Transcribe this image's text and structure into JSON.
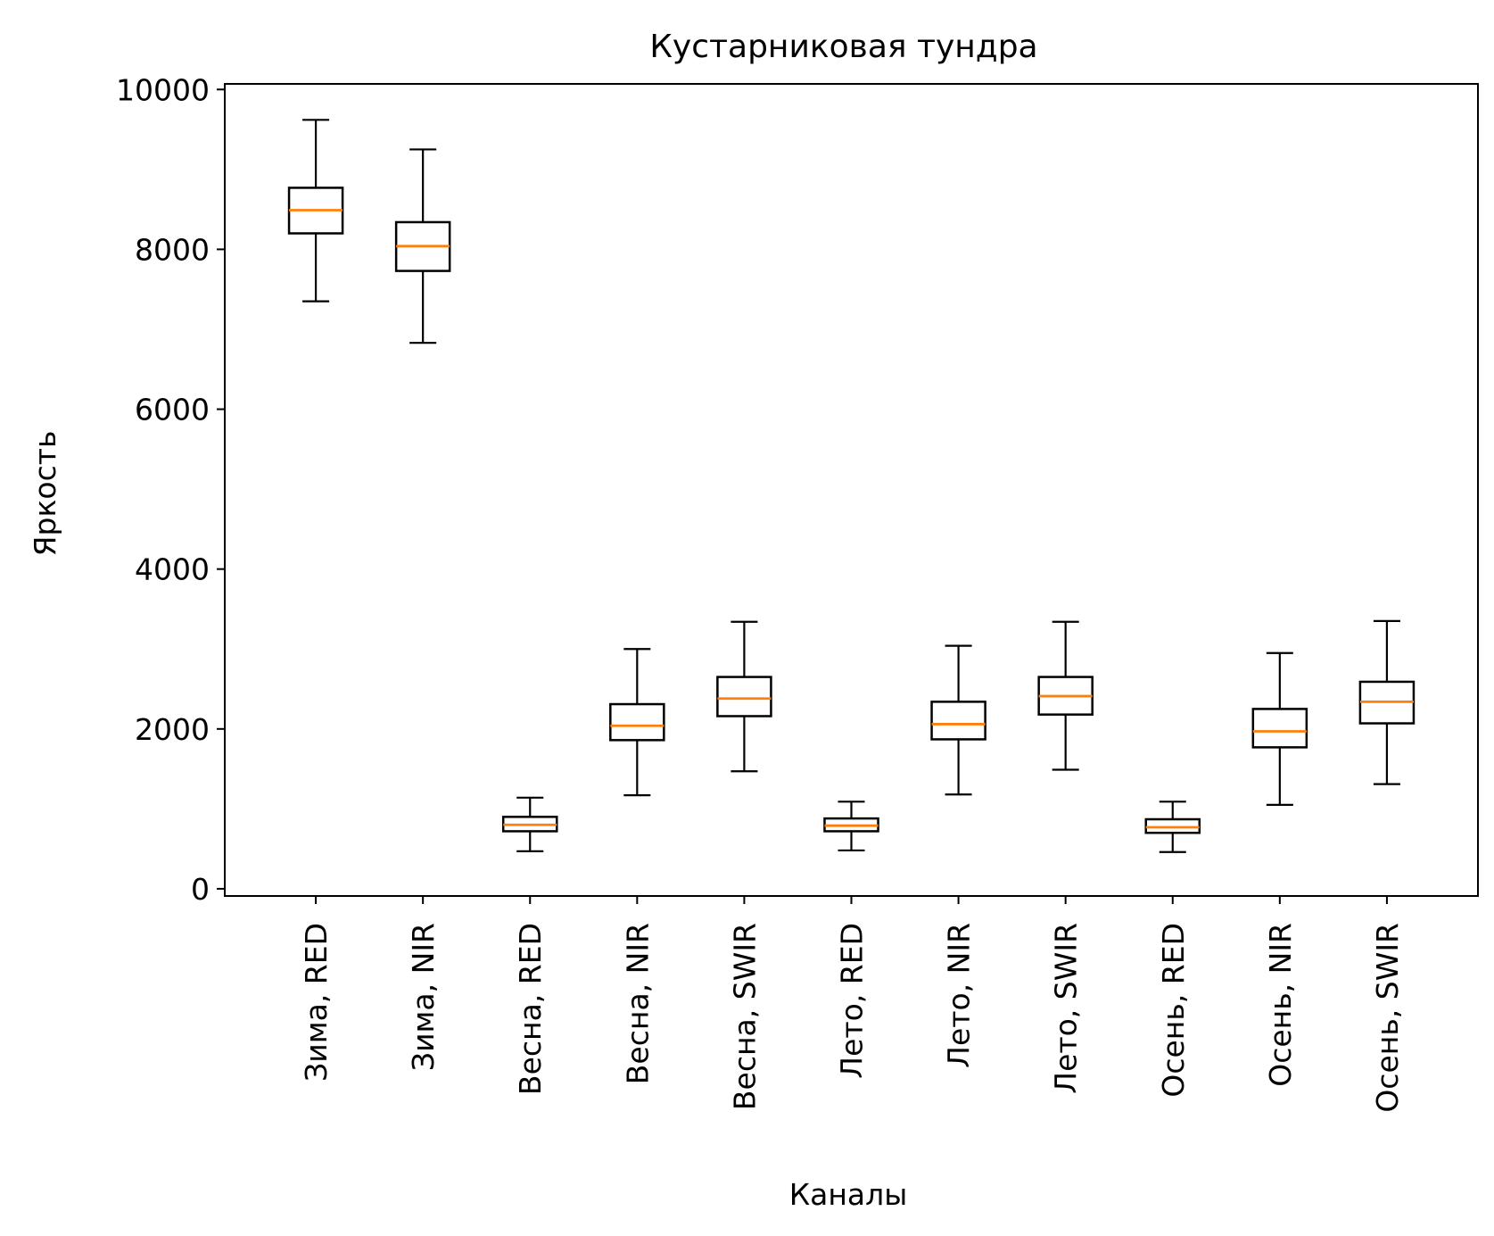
{
  "chart_data": {
    "type": "boxplot",
    "title": "Кустарниковая тундра",
    "xlabel": "Каналы",
    "ylabel": "Яркость",
    "ylim": [
      -90,
      10070
    ],
    "yticks": [
      0,
      2000,
      4000,
      6000,
      8000,
      10000
    ],
    "grid": false,
    "categories": [
      "Зима, RED",
      "Зима, NIR",
      "Весна, RED",
      "Весна, NIR",
      "Весна, SWIR",
      "Лето, RED",
      "Лето, NIR",
      "Лето, SWIR",
      "Осень, RED",
      "Осень, NIR",
      "Осень, SWIR"
    ],
    "boxes": [
      {
        "whislo": 7350,
        "q1": 8200,
        "med": 8490,
        "q3": 8770,
        "whishi": 9620
      },
      {
        "whislo": 6830,
        "q1": 7730,
        "med": 8040,
        "q3": 8340,
        "whishi": 9250
      },
      {
        "whislo": 470,
        "q1": 720,
        "med": 800,
        "q3": 900,
        "whishi": 1140
      },
      {
        "whislo": 1170,
        "q1": 1860,
        "med": 2040,
        "q3": 2310,
        "whishi": 3000
      },
      {
        "whislo": 1470,
        "q1": 2160,
        "med": 2380,
        "q3": 2650,
        "whishi": 3340
      },
      {
        "whislo": 480,
        "q1": 720,
        "med": 790,
        "q3": 880,
        "whishi": 1090
      },
      {
        "whislo": 1180,
        "q1": 1870,
        "med": 2060,
        "q3": 2340,
        "whishi": 3040
      },
      {
        "whislo": 1490,
        "q1": 2180,
        "med": 2410,
        "q3": 2650,
        "whishi": 3340
      },
      {
        "whislo": 460,
        "q1": 700,
        "med": 770,
        "q3": 870,
        "whishi": 1090
      },
      {
        "whislo": 1050,
        "q1": 1770,
        "med": 1970,
        "q3": 2250,
        "whishi": 2950
      },
      {
        "whislo": 1310,
        "q1": 2070,
        "med": 2340,
        "q3": 2590,
        "whishi": 3350
      }
    ],
    "colors": {
      "box": "#000000",
      "median": "#ff7f0e",
      "axes": "#000000"
    }
  }
}
